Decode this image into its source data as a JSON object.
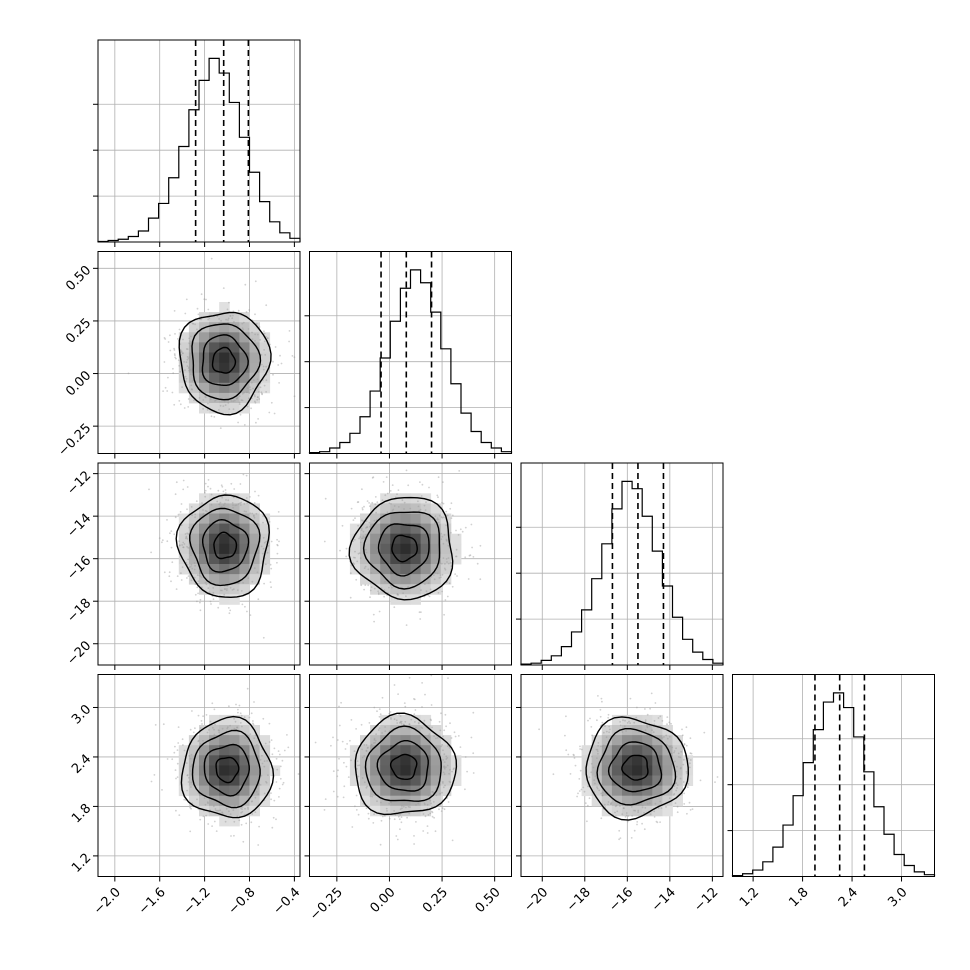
{
  "chart_data": {
    "type": "corner",
    "title": "",
    "grid": true,
    "parameters": [
      {
        "name": "",
        "range": [
          -2.15,
          -0.35
        ],
        "ticks": [
          -2.0,
          -1.6,
          -1.2,
          -0.8,
          -0.4
        ],
        "tick_labels": [
          "−2.0",
          "−1.6",
          "−1.2",
          "−0.8",
          "−0.4"
        ],
        "quantiles": [
          -1.28,
          -1.03,
          -0.81
        ],
        "mean": -1.03,
        "std": 0.2
      },
      {
        "name": "",
        "range": [
          -0.38,
          0.58
        ],
        "ticks": [
          -0.25,
          0.0,
          0.25,
          0.5
        ],
        "tick_labels": [
          "−0.25",
          "0.00",
          "0.25",
          "0.50"
        ],
        "quantiles": [
          -0.04,
          0.08,
          0.2
        ],
        "mean": 0.08,
        "std": 0.12
      },
      {
        "name": "",
        "range": [
          -21.0,
          -11.5
        ],
        "ticks": [
          -20,
          -18,
          -16,
          -14,
          -12
        ],
        "tick_labels": [
          "−20",
          "−18",
          "−16",
          "−14",
          "−12"
        ],
        "quantiles": [
          -16.7,
          -15.5,
          -14.3
        ],
        "mean": -15.5,
        "std": 1.2
      },
      {
        "name": "",
        "range": [
          0.95,
          3.4
        ],
        "ticks": [
          1.2,
          1.8,
          2.4,
          3.0
        ],
        "tick_labels": [
          "1.2",
          "1.8",
          "2.4",
          "3.0"
        ],
        "quantiles": [
          1.95,
          2.25,
          2.55
        ],
        "mean": 2.25,
        "std": 0.3
      }
    ],
    "histograms": [
      {
        "edges": [
          -2.15,
          -2.06,
          -1.97,
          -1.88,
          -1.79,
          -1.7,
          -1.61,
          -1.52,
          -1.43,
          -1.34,
          -1.25,
          -1.16,
          -1.07,
          -0.98,
          -0.89,
          -0.8,
          -0.71,
          -0.62,
          -0.53,
          -0.44,
          -0.35
        ],
        "counts": [
          0.3,
          0.8,
          1.5,
          3,
          6,
          13,
          21,
          35,
          52,
          72,
          88,
          100,
          92,
          76,
          57,
          38,
          22,
          11,
          5,
          2
        ]
      },
      {
        "edges": [
          -0.38,
          -0.332,
          -0.284,
          -0.236,
          -0.188,
          -0.14,
          -0.092,
          -0.044,
          0.004,
          0.052,
          0.1,
          0.148,
          0.196,
          0.244,
          0.292,
          0.34,
          0.388,
          0.436,
          0.484,
          0.532,
          0.58
        ],
        "counts": [
          0.5,
          1,
          3,
          6,
          11,
          20,
          34,
          52,
          72,
          90,
          100,
          93,
          77,
          57,
          38,
          22,
          12,
          6,
          3,
          1
        ]
      },
      {
        "edges": [
          -21.0,
          -20.525,
          -20.05,
          -19.575,
          -19.1,
          -18.625,
          -18.15,
          -17.675,
          -17.2,
          -16.725,
          -16.25,
          -15.775,
          -15.3,
          -14.825,
          -14.35,
          -13.875,
          -13.4,
          -12.925,
          -12.45,
          -11.975,
          -11.5
        ],
        "counts": [
          0.5,
          1,
          2.5,
          5,
          10,
          18,
          30,
          47,
          66,
          85,
          100,
          96,
          81,
          62,
          43,
          26,
          14,
          7,
          3,
          1
        ]
      },
      {
        "edges": [
          0.95,
          1.0725,
          1.195,
          1.3175,
          1.44,
          1.5625,
          1.685,
          1.8075,
          1.93,
          2.0525,
          2.175,
          2.2975,
          2.42,
          2.5425,
          2.665,
          2.7875,
          2.91,
          3.0325,
          3.155,
          3.2775,
          3.4
        ],
        "counts": [
          0.5,
          1.5,
          3.5,
          8,
          16,
          28,
          44,
          62,
          80,
          95,
          100,
          92,
          76,
          57,
          38,
          23,
          12,
          6,
          2.5,
          1
        ]
      }
    ],
    "pairs": [
      {
        "row": 1,
        "col": 0,
        "center": [
          -1.03,
          0.06
        ],
        "contour_radii_sigma": [
          0.5,
          1.0,
          1.5,
          2.0
        ]
      },
      {
        "row": 2,
        "col": 0,
        "center": [
          -1.02,
          -15.4
        ],
        "contour_radii_sigma": [
          0.5,
          1.0,
          1.5,
          2.0
        ]
      },
      {
        "row": 2,
        "col": 1,
        "center": [
          0.07,
          -15.5
        ],
        "contour_radii_sigma": [
          0.5,
          1.0,
          1.5,
          2.0
        ]
      },
      {
        "row": 3,
        "col": 0,
        "center": [
          -1.0,
          2.25
        ],
        "contour_radii_sigma": [
          0.5,
          1.0,
          1.5,
          2.0
        ]
      },
      {
        "row": 3,
        "col": 1,
        "center": [
          0.07,
          2.28
        ],
        "contour_radii_sigma": [
          0.5,
          1.0,
          1.5,
          2.0
        ]
      },
      {
        "row": 3,
        "col": 2,
        "center": [
          -15.6,
          2.27
        ],
        "contour_radii_sigma": [
          0.5,
          1.0,
          1.5,
          2.0
        ]
      }
    ],
    "colors": {
      "lines": "#000000",
      "grid": "#b0b0b0",
      "points": "#9a9a9a"
    }
  }
}
